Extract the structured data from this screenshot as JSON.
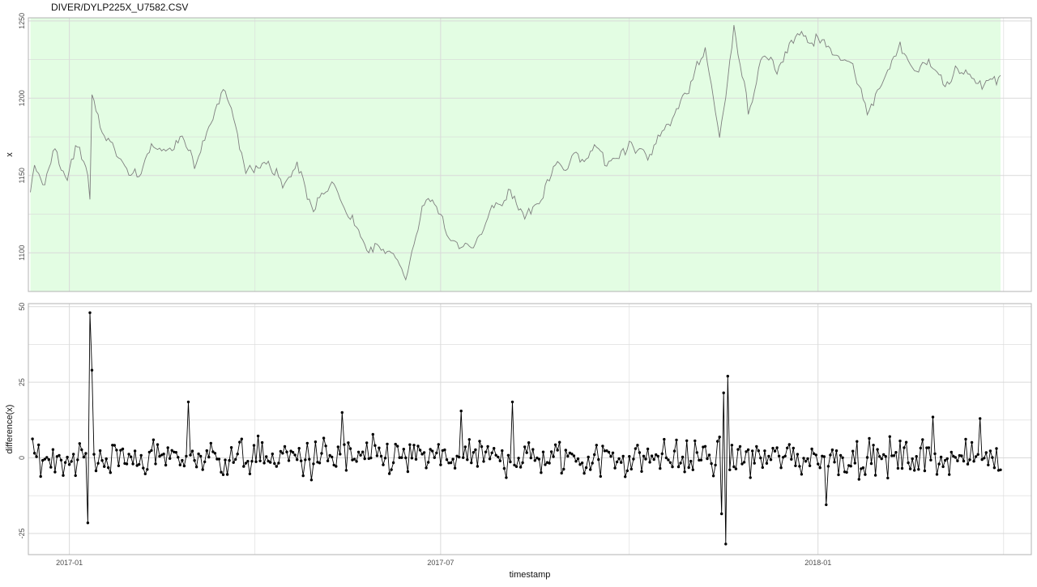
{
  "title": "DIVER/DYLP225X_U7582.CSV",
  "chart_data": [
    {
      "type": "line",
      "xlabel": "",
      "ylabel": "x",
      "ylim": [
        1075,
        1252
      ],
      "xlim": [
        "2016-12-12",
        "2018-04-15"
      ],
      "y_ticks": [
        1100,
        1150,
        1200,
        1250
      ],
      "y_tick_labels": [
        "1100",
        "1150",
        "1200",
        "1250"
      ],
      "grid": true,
      "highlight_band": {
        "x": [
          "2016-12-13",
          "2018-03-31"
        ],
        "color": "#e3fde3"
      },
      "colors": {
        "line": "#7f7f7f",
        "grid": "#d9d9d9",
        "panel_border": "#b3b3b3"
      },
      "series": [
        {
          "dates": [
            "2016-12-13",
            "2016-12-15",
            "2016-12-20",
            "2016-12-24",
            "2016-12-31",
            "2017-01-05",
            "2017-01-10",
            "2017-01-11",
            "2017-01-12",
            "2017-01-17",
            "2017-01-25",
            "2017-02-03",
            "2017-02-10",
            "2017-02-17",
            "2017-02-25",
            "2017-03-03",
            "2017-03-10",
            "2017-03-18",
            "2017-03-27",
            "2017-04-07",
            "2017-04-15",
            "2017-04-22",
            "2017-04-30",
            "2017-05-09",
            "2017-05-18",
            "2017-05-27",
            "2017-06-05",
            "2017-06-14",
            "2017-06-22",
            "2017-06-28",
            "2017-07-03",
            "2017-07-10",
            "2017-07-18",
            "2017-07-26",
            "2017-08-03",
            "2017-08-10",
            "2017-08-18",
            "2017-08-25",
            "2017-09-01",
            "2017-09-08",
            "2017-09-15",
            "2017-09-22",
            "2017-10-01",
            "2017-10-10",
            "2017-10-20",
            "2017-10-30",
            "2017-11-07",
            "2017-11-14",
            "2017-11-21",
            "2017-11-28",
            "2017-12-05",
            "2017-12-12",
            "2017-12-19",
            "2017-12-26",
            "2018-01-02",
            "2018-01-09",
            "2018-01-17",
            "2018-01-25",
            "2018-02-02",
            "2018-02-10",
            "2018-02-18",
            "2018-02-26",
            "2018-03-06",
            "2018-03-14",
            "2018-03-22",
            "2018-03-31"
          ],
          "values": [
            1144,
            1157,
            1145,
            1165,
            1150,
            1168,
            1150,
            1135,
            1203,
            1178,
            1162,
            1145,
            1170,
            1160,
            1172,
            1158,
            1176,
            1206,
            1162,
            1157,
            1146,
            1160,
            1128,
            1145,
            1123,
            1105,
            1100,
            1085,
            1130,
            1133,
            1115,
            1105,
            1100,
            1128,
            1140,
            1125,
            1132,
            1158,
            1157,
            1162,
            1166,
            1160,
            1173,
            1160,
            1185,
            1205,
            1232,
            1168,
            1244,
            1190,
            1232,
            1222,
            1238,
            1242,
            1235,
            1228,
            1222,
            1193,
            1210,
            1235,
            1218,
            1224,
            1210,
            1220,
            1205,
            1214
          ]
        }
      ]
    },
    {
      "type": "line",
      "xlabel": "timestamp",
      "ylabel": "difference(x)",
      "ylim": [
        -32,
        51
      ],
      "xlim": [
        "2016-12-12",
        "2018-04-15"
      ],
      "x_ticks": [
        "2017-01-01",
        "2017-07-01",
        "2018-01-01"
      ],
      "x_tick_labels": [
        "2017-01",
        "2017-07",
        "2018-01"
      ],
      "y_ticks": [
        -25,
        0,
        25,
        50
      ],
      "y_tick_labels": [
        "-25",
        "0",
        "25",
        "50"
      ],
      "grid": true,
      "markers": true,
      "colors": {
        "line": "#000000",
        "grid": "#d9d9d9",
        "panel_border": "#b3b3b3"
      },
      "spikes": [
        {
          "date": "2017-01-11",
          "value": 48
        },
        {
          "date": "2017-01-10",
          "value": -21.5
        },
        {
          "date": "2017-01-12",
          "value": 29
        },
        {
          "date": "2017-11-17",
          "value": -28.5
        },
        {
          "date": "2017-11-18",
          "value": 27
        },
        {
          "date": "2017-11-16",
          "value": 21.5
        },
        {
          "date": "2017-11-15",
          "value": -18.5
        },
        {
          "date": "2018-01-05",
          "value": -15.5
        },
        {
          "date": "2017-02-28",
          "value": 18.5
        },
        {
          "date": "2017-08-05",
          "value": 18.5
        },
        {
          "date": "2017-07-11",
          "value": 15.5
        },
        {
          "date": "2017-05-14",
          "value": 15
        },
        {
          "date": "2018-03-21",
          "value": 13
        },
        {
          "date": "2018-02-26",
          "value": 13.5
        }
      ]
    }
  ]
}
